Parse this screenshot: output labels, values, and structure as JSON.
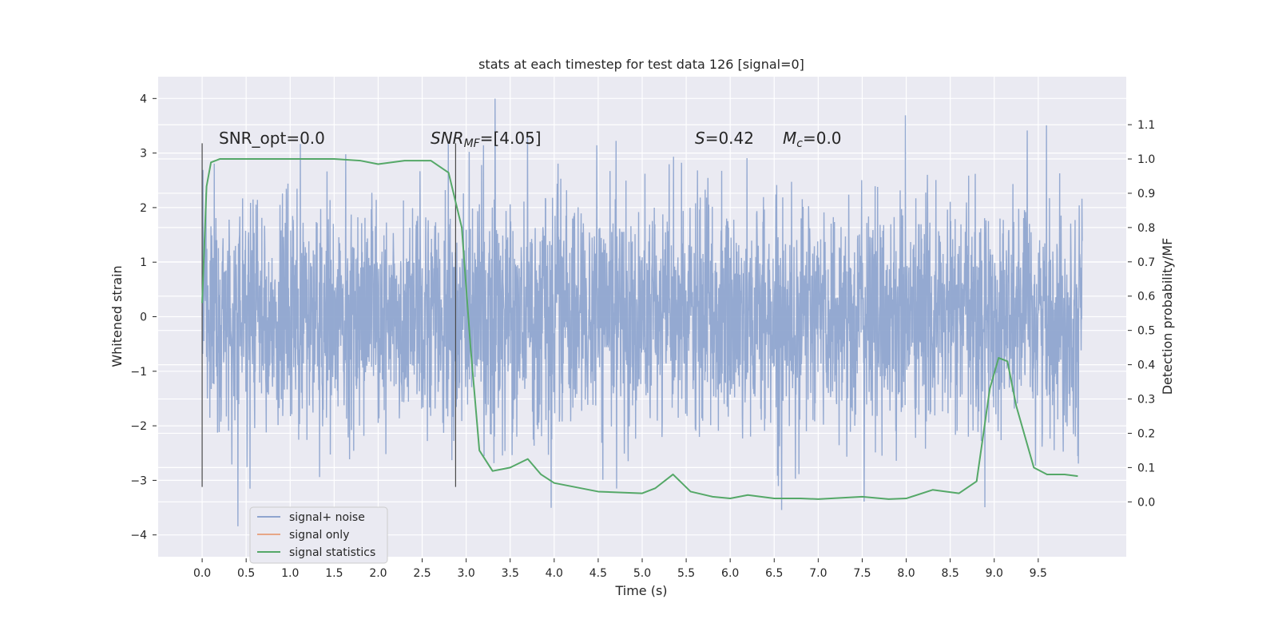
{
  "chart_data": {
    "type": "line",
    "title": "stats at each timestep for test data 126 [signal=0]",
    "xlabel": "Time (s)",
    "ylabel": "Whitened strain",
    "y2label": "Detection probability/MF",
    "xlim": [
      -0.5,
      10.5
    ],
    "ylim": [
      -4.4,
      4.4
    ],
    "y2lim": [
      -0.16,
      1.24
    ],
    "grid": true,
    "legend_position": "lower-left",
    "x_ticks": [
      "0.0",
      "0.5",
      "1.0",
      "1.5",
      "2.0",
      "2.5",
      "3.0",
      "3.5",
      "4.0",
      "4.5",
      "5.0",
      "5.5",
      "6.0",
      "6.5",
      "7.0",
      "7.5",
      "8.0",
      "8.5",
      "9.0",
      "9.5"
    ],
    "x_tick_values": [
      0,
      0.5,
      1,
      1.5,
      2,
      2.5,
      3,
      3.5,
      4,
      4.5,
      5,
      5.5,
      6,
      6.5,
      7,
      7.5,
      8,
      8.5,
      9,
      9.5
    ],
    "y_ticks": [
      "4",
      "3",
      "2",
      "1",
      "0",
      "−1",
      "−2",
      "−3",
      "−4"
    ],
    "y_tick_values": [
      4,
      3,
      2,
      1,
      0,
      -1,
      -2,
      -3,
      -4
    ],
    "y2_ticks": [
      "1.1",
      "1.0",
      "0.9",
      "0.8",
      "0.7",
      "0.6",
      "0.5",
      "0.4",
      "0.3",
      "0.2",
      "0.1",
      "0.0"
    ],
    "y2_tick_values": [
      1.1,
      1.0,
      0.9,
      0.8,
      0.7,
      0.6,
      0.5,
      0.4,
      0.3,
      0.2,
      0.1,
      0.0
    ],
    "annotations": {
      "snr_opt": "SNR_opt=0.0",
      "snr_mf_sym": "SNR",
      "snr_mf_sub": "MF",
      "snr_mf_val": "=[4.05]",
      "s_sym": "S",
      "s_val": "=0.42",
      "mc_sym": "M",
      "mc_sub": "c",
      "mc_val": "=0.0"
    },
    "vertical_markers": [
      0.0,
      2.88
    ],
    "noise_trace": {
      "name": "signal+ noise",
      "color": "#8fa5cf",
      "x_range": [
        0.0,
        10.0
      ],
      "typical_band": [
        -2.0,
        2.0
      ],
      "max": 4.05,
      "min": -3.95
    },
    "series": [
      {
        "name": "signal statistics",
        "color": "#55a868",
        "axis": "right",
        "x": [
          0.0,
          0.05,
          0.1,
          0.2,
          0.5,
          1.0,
          1.5,
          1.8,
          2.0,
          2.3,
          2.6,
          2.8,
          2.95,
          3.05,
          3.15,
          3.3,
          3.5,
          3.7,
          3.85,
          4.0,
          4.5,
          5.0,
          5.15,
          5.35,
          5.55,
          5.8,
          6.0,
          6.2,
          6.5,
          6.8,
          7.0,
          7.5,
          7.8,
          8.0,
          8.3,
          8.6,
          8.8,
          8.95,
          9.05,
          9.15,
          9.25,
          9.45,
          9.6,
          9.8,
          9.95
        ],
        "values": [
          0.58,
          0.92,
          0.99,
          1.0,
          1.0,
          1.0,
          1.0,
          0.995,
          0.985,
          0.995,
          0.995,
          0.96,
          0.8,
          0.45,
          0.15,
          0.09,
          0.1,
          0.125,
          0.08,
          0.055,
          0.03,
          0.025,
          0.04,
          0.08,
          0.03,
          0.015,
          0.01,
          0.02,
          0.01,
          0.01,
          0.008,
          0.015,
          0.008,
          0.01,
          0.035,
          0.025,
          0.06,
          0.33,
          0.42,
          0.41,
          0.28,
          0.1,
          0.08,
          0.08,
          0.075
        ]
      },
      {
        "name": "signal only",
        "color": "#dd8452",
        "axis": "left",
        "x": [],
        "values": []
      }
    ],
    "legend": [
      {
        "label": "signal+ noise",
        "color": "#8fa5cf"
      },
      {
        "label": "signal only",
        "color": "#e7a787"
      },
      {
        "label": "signal statistics",
        "color": "#55a868"
      }
    ]
  }
}
